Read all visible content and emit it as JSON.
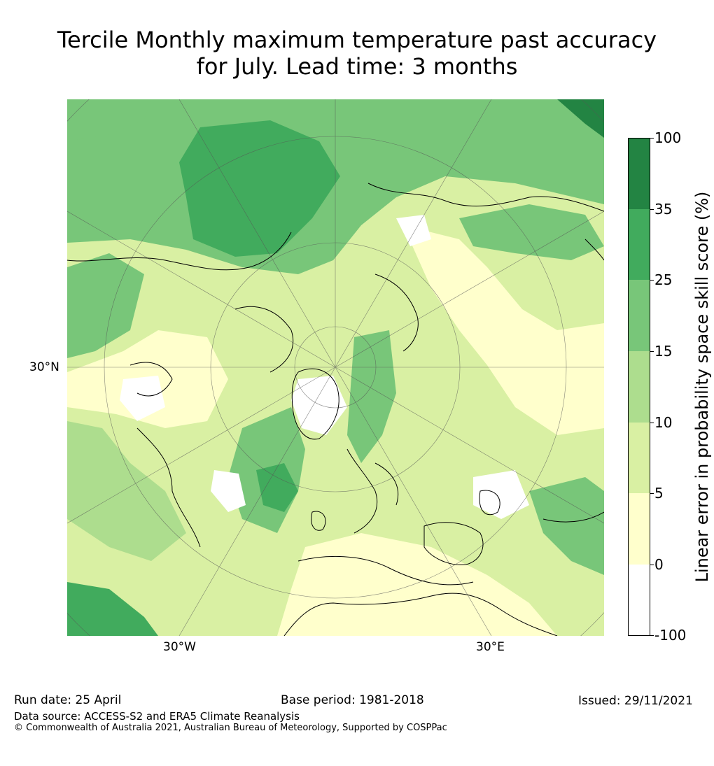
{
  "title": {
    "line1": "Tercile Monthly maximum temperature past accuracy",
    "line2": "for July. Lead time: 3 months"
  },
  "map": {
    "projection": "north-polar-stereographic",
    "lat_label": "30°N",
    "lon_labels": [
      "30°W",
      "30°E"
    ],
    "coastline_color": "#000000",
    "graticule_color": "#555555"
  },
  "colorbar": {
    "label": "Linear error in probability space skill score (%)",
    "ticks": [
      "100",
      "35",
      "25",
      "15",
      "10",
      "5",
      "0",
      "-100"
    ],
    "bins": [
      {
        "range": "35 to 100",
        "color": "#238443"
      },
      {
        "range": "25 to 35",
        "color": "#41ab5d"
      },
      {
        "range": "15 to 25",
        "color": "#78c679"
      },
      {
        "range": "10 to 15",
        "color": "#addd8e"
      },
      {
        "range": "5 to 10",
        "color": "#d9f0a3"
      },
      {
        "range": "0 to 5",
        "color": "#ffffcc"
      },
      {
        "range": "-100 to 0",
        "color": "#ffffff"
      }
    ]
  },
  "footer": {
    "run_date": "Run date: 25 April",
    "base_period": "Base period: 1981-2018",
    "issued": "Issued: 29/11/2021",
    "data_source": "Data source: ACCESS-S2 and ERA5 Climate Reanalysis",
    "copyright": "© Commonwealth of Australia 2021, Australian Bureau of Meteorology, Supported by COSPPac"
  }
}
